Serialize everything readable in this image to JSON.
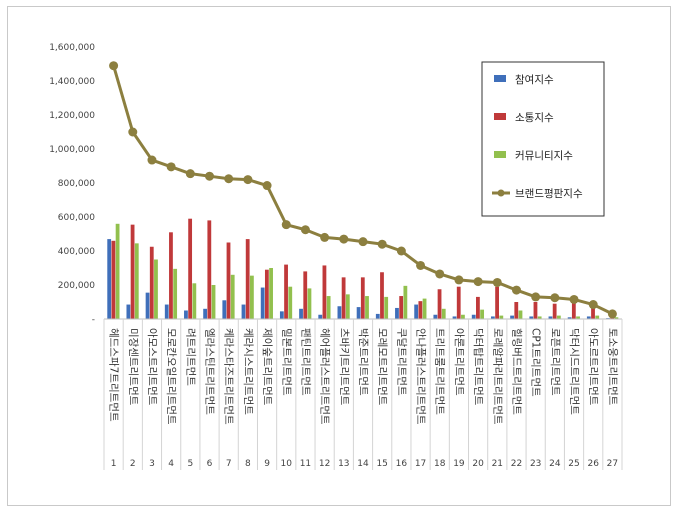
{
  "chart_data": {
    "type": "bar",
    "ylim": [
      0,
      1600000
    ],
    "yticks": [
      "-",
      "200,000",
      "400,000",
      "600,000",
      "800,000",
      "1,000,000",
      "1,200,000",
      "1,400,000",
      "1,600,000"
    ],
    "categories": [
      "헤드스파7트리트먼트",
      "미장센트리트먼트",
      "아모스트리트먼트",
      "모로칸오일트리트먼트",
      "려트리트먼트",
      "엘라스틴트리트먼트",
      "케라스타즈트리트먼트",
      "케라시스트리트먼트",
      "제이숲트리트먼트",
      "밀본트리트먼트",
      "팬틴트리트먼트",
      "헤어플러스트리트먼트",
      "츠바키트리트먼트",
      "박준트리트먼트",
      "모레모트리트먼트",
      "쿠달트리트먼트",
      "안나플러스트리트먼트",
      "트리트룸트리트먼트",
      "아론트리트먼트",
      "닥터탑트리트먼트",
      "로레알파리트리트먼트",
      "힐링버드트리트먼트",
      "CP1트리트먼트",
      "로픈트리트먼트",
      "닥터시드트리트먼트",
      "아도르트리트먼트",
      "토소웅트리트먼트"
    ],
    "numbers": [
      "1",
      "2",
      "3",
      "4",
      "5",
      "6",
      "7",
      "8",
      "9",
      "10",
      "11",
      "12",
      "13",
      "14",
      "15",
      "16",
      "17",
      "18",
      "19",
      "20",
      "21",
      "22",
      "23",
      "24",
      "25",
      "26",
      "27"
    ],
    "series": [
      {
        "name": "참여지수",
        "type": "bar",
        "color": "#3f6fba",
        "values": [
          470000,
          85000,
          155000,
          85000,
          50000,
          60000,
          110000,
          85000,
          185000,
          45000,
          60000,
          25000,
          75000,
          70000,
          30000,
          65000,
          85000,
          25000,
          15000,
          25000,
          15000,
          20000,
          15000,
          15000,
          10000,
          15000,
          5000
        ]
      },
      {
        "name": "소통지수",
        "type": "bar",
        "color": "#c0393a",
        "values": [
          460000,
          555000,
          425000,
          510000,
          590000,
          580000,
          450000,
          470000,
          290000,
          320000,
          280000,
          315000,
          245000,
          245000,
          275000,
          135000,
          105000,
          175000,
          190000,
          130000,
          190000,
          100000,
          100000,
          90000,
          95000,
          65000,
          25000
        ]
      },
      {
        "name": "커뮤니티지수",
        "type": "bar",
        "color": "#92c04e",
        "values": [
          560000,
          445000,
          350000,
          295000,
          210000,
          200000,
          260000,
          255000,
          300000,
          190000,
          180000,
          135000,
          145000,
          135000,
          130000,
          195000,
          120000,
          60000,
          25000,
          55000,
          20000,
          50000,
          15000,
          20000,
          15000,
          20000,
          10000
        ]
      },
      {
        "name": "브랜드평판지수",
        "type": "line",
        "color": "#8c7f3f",
        "values": [
          1490000,
          1100000,
          935000,
          895000,
          855000,
          840000,
          825000,
          820000,
          785000,
          555000,
          525000,
          480000,
          470000,
          455000,
          440000,
          400000,
          315000,
          265000,
          230000,
          220000,
          215000,
          170000,
          130000,
          125000,
          115000,
          85000,
          30000
        ]
      }
    ]
  }
}
